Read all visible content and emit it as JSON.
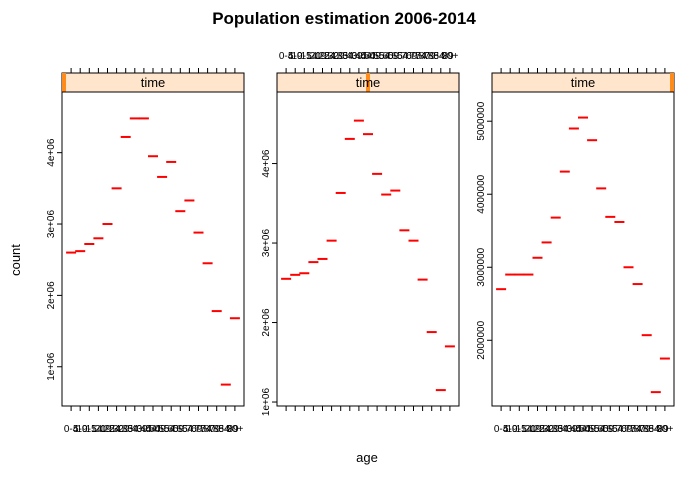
{
  "chart_data": {
    "type": "scatter",
    "title": "Population estimation 2006-2014",
    "xlabel": "age",
    "ylabel": "count",
    "strip_label": "time",
    "categories": [
      "0-4",
      "5-9",
      "10-14",
      "15-19",
      "20-24",
      "25-29",
      "30-34",
      "35-39",
      "40-44",
      "45-49",
      "50-54",
      "55-59",
      "60-64",
      "65-69",
      "70-74",
      "75-79",
      "80-84",
      "85-89",
      "90+"
    ],
    "colors": {
      "marker": "#ff0000",
      "strip_bg": "#ffe5cc",
      "strip_indicator": "#ff8c1a",
      "axis": "#000000"
    },
    "panels": [
      {
        "ylim": [
          450000,
          4850000
        ],
        "ytick_values": [
          1000000,
          2000000,
          3000000,
          4000000
        ],
        "ytick_labels": [
          "1e+06",
          "2e+06",
          "3e+06",
          "4e+06"
        ],
        "time_indicator": 0.0,
        "values": [
          2600000,
          2620000,
          2720000,
          2800000,
          3000000,
          3500000,
          4220000,
          4480000,
          4480000,
          3950000,
          3660000,
          3870000,
          3180000,
          3330000,
          2880000,
          2450000,
          1780000,
          750000,
          1680000
        ]
      },
      {
        "ylim": [
          950000,
          4900000
        ],
        "ytick_values": [
          1000000,
          2000000,
          3000000,
          4000000
        ],
        "ytick_labels": [
          "1e+06",
          "2e+06",
          "3e+06",
          "4e+06"
        ],
        "time_indicator": 0.5,
        "values": [
          2550000,
          2600000,
          2620000,
          2760000,
          2800000,
          3030000,
          3630000,
          4310000,
          4540000,
          4370000,
          3870000,
          3610000,
          3660000,
          3160000,
          3030000,
          2540000,
          1880000,
          1150000,
          1700000
        ]
      },
      {
        "ylim": [
          1100000,
          5400000
        ],
        "ytick_values": [
          2000000,
          3000000,
          4000000,
          5000000
        ],
        "ytick_labels": [
          "2000000",
          "3000000",
          "4000000",
          "5000000"
        ],
        "time_indicator": 1.0,
        "values": [
          2700000,
          2900000,
          2900000,
          2900000,
          3130000,
          3340000,
          3680000,
          4310000,
          4900000,
          5050000,
          4740000,
          4080000,
          3690000,
          3620000,
          3000000,
          2770000,
          2070000,
          1290000,
          1750000
        ]
      }
    ]
  }
}
